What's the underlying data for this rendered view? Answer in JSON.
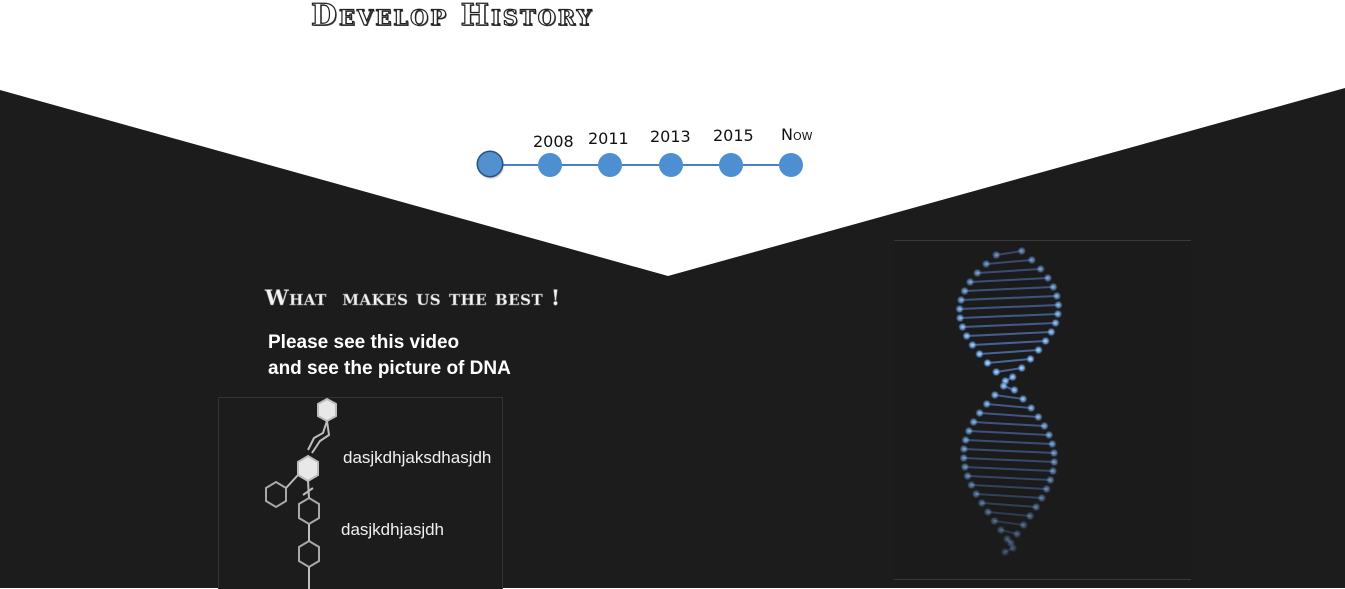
{
  "header": {
    "title": "Develop History"
  },
  "timeline": {
    "labels": [
      "2008",
      "2011",
      "2013",
      "2015",
      "Now"
    ]
  },
  "section": {
    "heading": "What  makes us the best !",
    "intro_line1": "Please see this video",
    "intro_line2": "and see the picture of DNA"
  },
  "molecule": {
    "text1": "dasjkdhjaksdhasjdh",
    "text2": "dasjkdhjasjdh"
  },
  "dna": {
    "image": "dna-helix-image"
  },
  "colors": {
    "background_dark": "#1c1c1c",
    "timeline_blue": "#4d8fd0",
    "white": "#ffffff"
  }
}
